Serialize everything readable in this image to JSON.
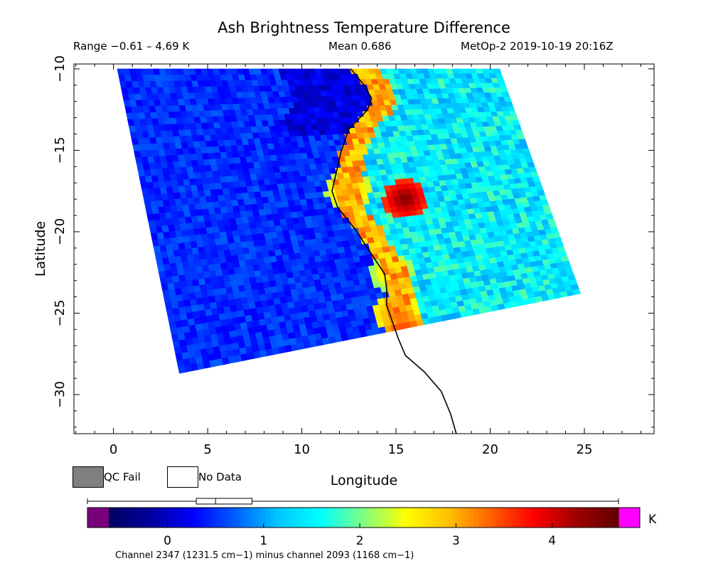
{
  "chart_data": {
    "type": "heatmap",
    "title": "Ash Brightness Temperature Difference",
    "range_text": "Range −0.61 – 4.69 K",
    "mean_text": "Mean 0.686",
    "satellite_text": "MetOp-2 2019-10-19 20:16Z",
    "xlabel": "Longitude",
    "ylabel": "Latitude",
    "xlim": [
      -2.1,
      28.7
    ],
    "ylim": [
      -32.4,
      -9.7
    ],
    "xticks": [
      0,
      5,
      10,
      15,
      20,
      25
    ],
    "yticks": [
      -10,
      -15,
      -20,
      -25,
      -30
    ],
    "swath_corners": [
      [
        0.2,
        -10.0
      ],
      [
        20.5,
        -10.0
      ],
      [
        24.8,
        -23.8
      ],
      [
        3.5,
        -28.7
      ]
    ],
    "coastline": [
      [
        12.6,
        -10.0
      ],
      [
        13.3,
        -11.0
      ],
      [
        13.7,
        -11.8
      ],
      [
        13.5,
        -12.5
      ],
      [
        12.5,
        -13.7
      ],
      [
        12.1,
        -15.0
      ],
      [
        11.8,
        -16.5
      ],
      [
        11.6,
        -17.5
      ],
      [
        11.9,
        -18.5
      ],
      [
        12.8,
        -19.8
      ],
      [
        13.6,
        -21.2
      ],
      [
        14.4,
        -22.6
      ],
      [
        14.5,
        -23.5
      ],
      [
        14.5,
        -24.5
      ],
      [
        14.8,
        -25.5
      ],
      [
        15.1,
        -26.5
      ],
      [
        15.5,
        -27.6
      ],
      [
        16.5,
        -28.6
      ],
      [
        17.4,
        -29.8
      ],
      [
        17.9,
        -31.2
      ],
      [
        18.2,
        -32.4
      ]
    ],
    "hotspots": [
      {
        "lon": 15.5,
        "lat": -18.0,
        "value": 4.5
      },
      {
        "lon": 12.5,
        "lat": -17.5,
        "value": 3.2
      },
      {
        "lon": 15.0,
        "lat": -25.0,
        "value": 3.4
      },
      {
        "lon": 15.5,
        "lat": -26.2,
        "value": 3.8
      },
      {
        "lon": 14.8,
        "lat": -22.5,
        "value": 3.0
      }
    ],
    "colorbar": {
      "min": -0.61,
      "max": 4.69,
      "ticks": [
        0,
        1,
        2,
        3,
        4
      ],
      "unit": "K",
      "under_color": "#7a007a",
      "over_color": "#ff00ff",
      "stops": [
        "#000060",
        "#0000a0",
        "#0000ff",
        "#0060ff",
        "#00c8ff",
        "#00ffff",
        "#80ff80",
        "#ffff00",
        "#ffc000",
        "#ff6000",
        "#ff0000",
        "#a00000",
        "#600000"
      ]
    },
    "histogram_marker": {
      "q1": 0.3,
      "median": 0.5,
      "q3": 0.88
    }
  },
  "legend": {
    "qc_fail_label": "QC Fail",
    "no_data_label": "No Data",
    "qc_fail_color": "#808080",
    "no_data_color": "#ffffff"
  },
  "footnote": "Channel 2347 (1231.5 cm−1) minus channel 2093 (1168 cm−1)"
}
